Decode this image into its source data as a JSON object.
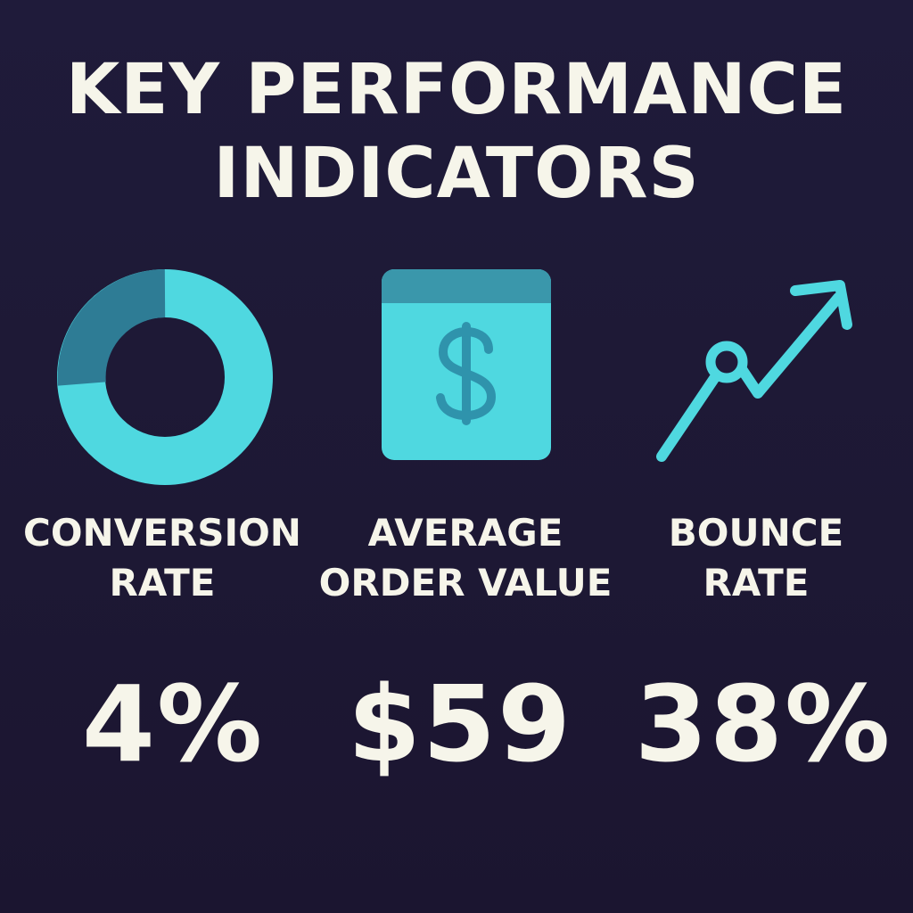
{
  "title": {
    "line1": "KEY PERFORMANCE",
    "line2": "INDICATORS"
  },
  "colors": {
    "background": "#1f1b3a",
    "accent": "#4fd8e0",
    "accent_dark": "#2e7c95",
    "text": "#f6f5ea"
  },
  "kpis": [
    {
      "icon": "donut-chart-icon",
      "label_line1": "CONVERSION",
      "label_line2": "RATE",
      "value": "4%"
    },
    {
      "icon": "dollar-card-icon",
      "label_line1": "AVERAGE",
      "label_line2": "ORDER VALUE",
      "value": "$59"
    },
    {
      "icon": "trend-up-arrow-icon",
      "label_line1": "BOUNCE",
      "label_line2": "RATE",
      "value": "38%"
    }
  ]
}
